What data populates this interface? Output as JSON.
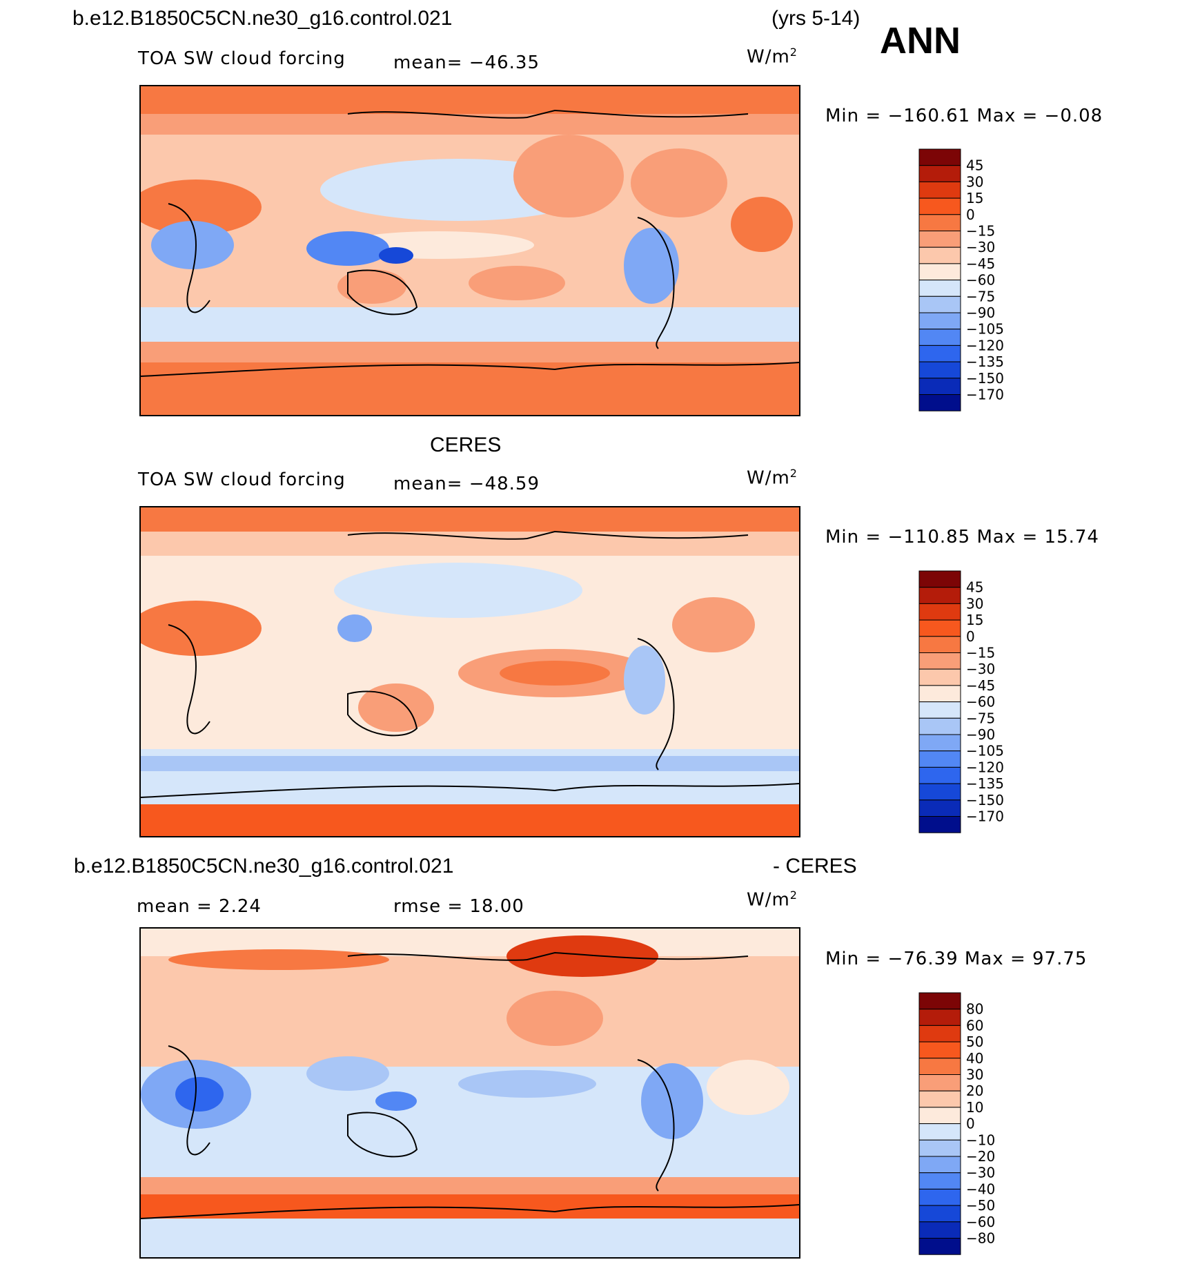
{
  "colors": {
    "model_scale": [
      "#000e8c",
      "#0a2bb8",
      "#1648d8",
      "#2e66ee",
      "#5287f4",
      "#7fa8f5",
      "#a9c6f6",
      "#d5e6fa",
      "#fdeadc",
      "#fcc8ac",
      "#f99e78",
      "#f77842",
      "#f7581e",
      "#df3a10",
      "#b41c0a",
      "#7c0506"
    ],
    "diff_scale": [
      "#000e8c",
      "#0a2bb8",
      "#1648d8",
      "#2e66ee",
      "#5287f4",
      "#7fa8f5",
      "#a9c6f6",
      "#d5e6fa",
      "#fdeadc",
      "#fcc8ac",
      "#f99e78",
      "#f77842",
      "#f7581e",
      "#df3a10",
      "#b41c0a",
      "#7c0506"
    ]
  },
  "header": {
    "case_name": "b.e12.B1850C5CN.ne30_g16.control.021",
    "years": "(yrs 5-14)",
    "season": "ANN"
  },
  "panels": [
    {
      "title": "",
      "variable": "TOA SW cloud forcing",
      "mean_text": "mean= −46.35",
      "units": "W/m",
      "units_sup": "2",
      "minmax": "Min = −160.61 Max =  −0.08",
      "colorbar_labels": [
        "45",
        "30",
        "15",
        "0",
        "−15",
        "−30",
        "−45",
        "−60",
        "−75",
        "−90",
        "−105",
        "−120",
        "−135",
        "−150",
        "−170"
      ]
    },
    {
      "title": "CERES",
      "variable": "TOA SW cloud forcing",
      "mean_text": "mean= −48.59",
      "units": "W/m",
      "units_sup": "2",
      "minmax": "Min = −110.85 Max =  15.74",
      "colorbar_labels": [
        "45",
        "30",
        "15",
        "0",
        "−15",
        "−30",
        "−45",
        "−60",
        "−75",
        "−90",
        "−105",
        "−120",
        "−135",
        "−150",
        "−170"
      ]
    },
    {
      "title_left": "b.e12.B1850C5CN.ne30_g16.control.021",
      "title_right": "- CERES",
      "mean_text": "mean =   2.24",
      "rmse_text": "rmse =  18.00",
      "units": "W/m",
      "units_sup": "2",
      "minmax": "Min = −76.39 Max =  97.75",
      "colorbar_labels": [
        "80",
        "60",
        "50",
        "40",
        "30",
        "20",
        "10",
        "0",
        "−10",
        "−20",
        "−30",
        "−40",
        "−50",
        "−60",
        "−80"
      ]
    }
  ]
}
